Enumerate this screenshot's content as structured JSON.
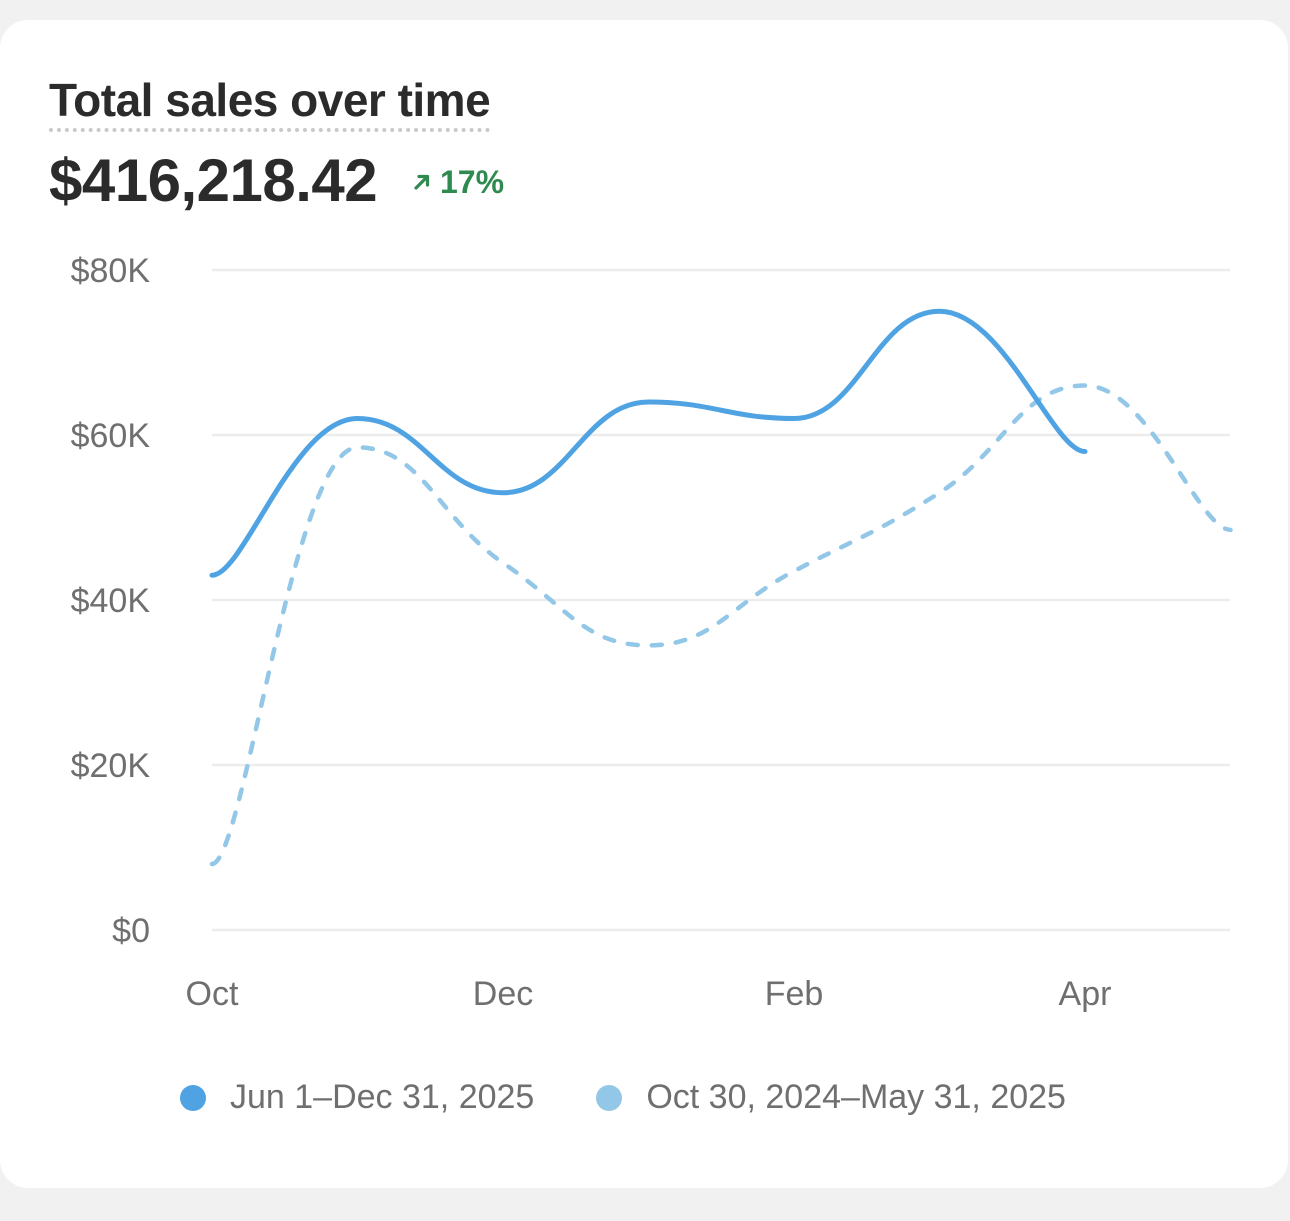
{
  "header": {
    "title": "Total sales over time",
    "total": "$416,218.42",
    "change": "17%",
    "change_direction": "up",
    "change_icon": "arrow-up-right-icon"
  },
  "colors": {
    "current": "#4fa3e3",
    "previous": "#93c7e8",
    "change_positive": "#2f8a4f",
    "grid": "#ececec",
    "axis_text": "#6f6f6f"
  },
  "chart_data": {
    "type": "line",
    "ylim": [
      0,
      80000
    ],
    "yticks": [
      0,
      20000,
      40000,
      60000,
      80000
    ],
    "ytick_labels": [
      "$0",
      "$20K",
      "$40K",
      "$60K",
      "$80K"
    ],
    "xtick_labels": [
      "Oct",
      "Dec",
      "Feb",
      "Apr"
    ],
    "grid": true,
    "legend_position": "bottom",
    "series": [
      {
        "name": "Jun 1–Dec 31, 2025",
        "style": "solid",
        "color": "#4fa3e3",
        "x": [
          0,
          1,
          2,
          3,
          4,
          5,
          6
        ],
        "values": [
          43000,
          62000,
          53000,
          64000,
          62000,
          75000,
          58000
        ]
      },
      {
        "name": "Oct 30, 2024–May 31, 2025",
        "style": "dashed",
        "color": "#93c7e8",
        "x": [
          0,
          1,
          2,
          3,
          4,
          5,
          6,
          7
        ],
        "values": [
          8000,
          58500,
          44500,
          34500,
          43500,
          53000,
          66000,
          48500
        ]
      }
    ]
  }
}
